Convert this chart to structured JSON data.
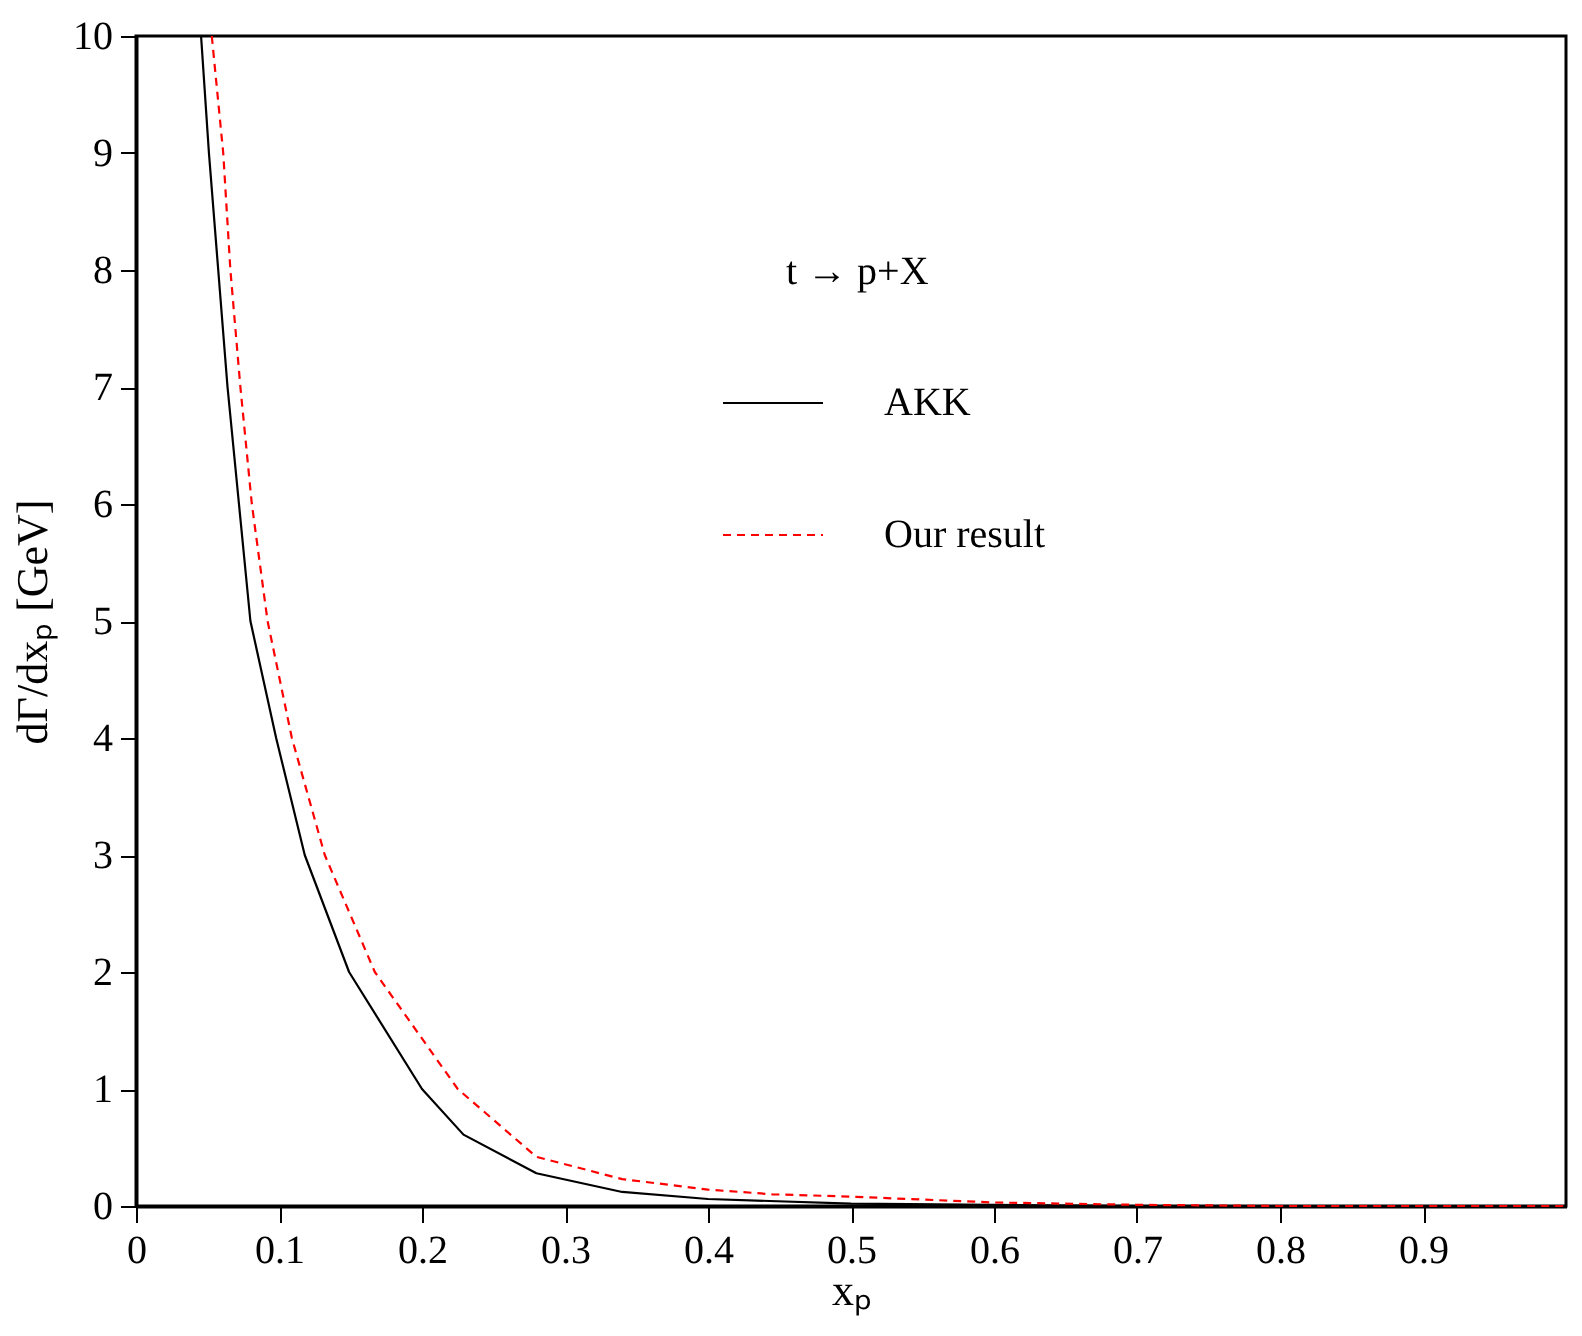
{
  "chart_data": {
    "type": "line",
    "xlabel": "xₚ",
    "ylabel": "dΓ/dxₚ   [GeV]",
    "annotations": [
      "t → p+X"
    ],
    "xlim": [
      0,
      1
    ],
    "xticks": [
      0,
      0.1,
      0.2,
      0.3,
      0.4,
      0.5,
      0.6,
      0.7,
      0.8,
      0.9
    ],
    "ylim": [
      0,
      10
    ],
    "yticks": [
      0,
      1,
      2,
      3,
      4,
      5,
      6,
      7,
      8,
      9,
      10
    ],
    "grid": false,
    "legend": "top right",
    "marker": "none",
    "series": [
      {
        "name": "AKK",
        "color": "#000000",
        "line_style": "solid",
        "x": [
          0.0455,
          0.051,
          0.0575,
          0.064,
          0.072,
          0.08,
          0.098,
          0.118,
          0.149,
          0.2,
          0.229,
          0.28,
          0.34,
          0.4,
          0.5,
          0.6,
          0.7,
          0.8,
          0.9,
          1.0
        ],
        "values": [
          10,
          9,
          8,
          7,
          6,
          5,
          4,
          3,
          2,
          1,
          0.61,
          0.28,
          0.12,
          0.06,
          0.02,
          0.01,
          0,
          0,
          0,
          0
        ]
      },
      {
        "name": "Our result",
        "color": "#ff0000",
        "line_style": "dashed",
        "x": [
          0.053,
          0.061,
          0.066,
          0.073,
          0.081,
          0.092,
          0.109,
          0.132,
          0.167,
          0.225,
          0.28,
          0.34,
          0.4,
          0.445,
          0.5,
          0.6,
          0.7,
          0.8,
          0.9,
          1.0
        ],
        "values": [
          10,
          9,
          8,
          7,
          6,
          5,
          4,
          3,
          2,
          1,
          0.42,
          0.23,
          0.14,
          0.1,
          0.08,
          0.03,
          0.01,
          0,
          0,
          0
        ]
      }
    ]
  }
}
